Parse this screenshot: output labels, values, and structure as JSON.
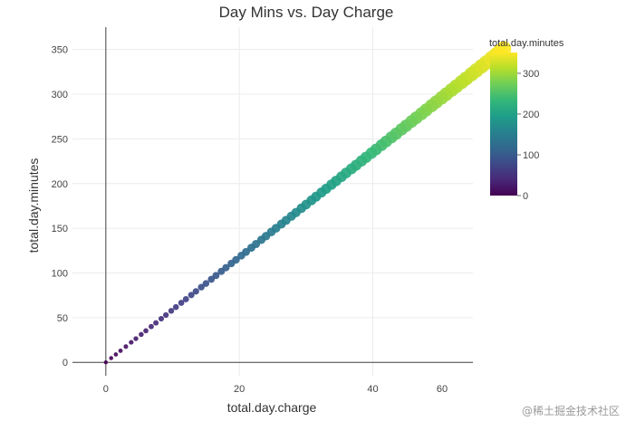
{
  "watermark": "@稀土掘金技术社区",
  "chart_data": {
    "type": "scatter",
    "title": "Day Mins vs. Day Charge",
    "xlabel": "total.day.charge",
    "ylabel": "total.day.minutes",
    "xlim": [
      -5,
      55
    ],
    "ylim": [
      -15,
      375
    ],
    "xticks": [
      0,
      20,
      40,
      60
    ],
    "yticks": [
      0,
      50,
      100,
      150,
      200,
      250,
      300,
      350
    ],
    "grid": true,
    "colorbar": {
      "title": "total.day.minutes",
      "range": [
        0,
        351
      ],
      "ticks": [
        0,
        100,
        200,
        300
      ],
      "colors": [
        "#440154",
        "#482878",
        "#3e4989",
        "#31688e",
        "#26828e",
        "#1f9e89",
        "#35b779",
        "#6ece58",
        "#b5de2b",
        "#fde725"
      ],
      "placement": "right"
    },
    "series": [
      {
        "rate_minutes_per_charge": 5.882,
        "x": [
          0,
          0.8,
          1.5,
          2.2,
          3.0,
          3.8,
          4.5,
          5.3,
          6.0,
          6.8,
          7.5,
          8.3,
          9.0,
          9.8,
          10.5,
          11.3,
          12.0,
          12.8,
          13.5,
          14.3,
          15.0,
          15.8,
          16.5,
          17.3,
          18.0,
          18.8,
          19.5,
          20.3,
          21.0,
          21.8,
          22.5,
          23.3,
          24.0,
          24.8,
          25.5,
          26.3,
          27.0,
          27.8,
          28.5,
          29.3,
          30.0,
          30.8,
          31.5,
          32.3,
          33.0,
          33.8,
          34.5,
          35.3,
          36.0,
          36.8,
          37.5,
          38.3,
          39.0,
          39.8,
          40.5,
          41.3,
          42.0,
          42.8,
          43.5,
          44.3,
          45.0,
          45.8,
          46.5,
          47.3,
          48.0,
          48.8,
          49.5,
          50.3,
          51.0,
          51.8,
          52.5,
          53.3,
          54.0,
          54.8,
          55.5,
          56.3,
          57.0,
          57.8,
          58.5,
          59.0,
          59.6
        ],
        "y": [
          0,
          4.7,
          8.8,
          12.9,
          17.6,
          22.4,
          26.5,
          31.2,
          35.3,
          40.0,
          44.1,
          48.8,
          52.9,
          57.6,
          61.8,
          66.5,
          70.6,
          75.3,
          79.4,
          84.1,
          88.2,
          92.9,
          97.1,
          101.8,
          105.9,
          110.6,
          114.7,
          119.4,
          123.5,
          128.2,
          132.4,
          137.1,
          141.2,
          145.9,
          150.0,
          154.7,
          158.8,
          163.5,
          167.6,
          172.4,
          176.5,
          181.2,
          185.3,
          190.0,
          194.1,
          198.8,
          202.9,
          207.6,
          211.8,
          216.5,
          220.6,
          225.3,
          229.4,
          234.1,
          238.2,
          242.9,
          247.1,
          251.8,
          255.9,
          260.6,
          264.7,
          269.4,
          273.5,
          278.2,
          282.4,
          287.1,
          291.2,
          295.9,
          300.0,
          304.7,
          308.8,
          313.5,
          317.6,
          322.4,
          326.5,
          331.2,
          335.3,
          340.0,
          344.1,
          347.1,
          350.8
        ]
      }
    ]
  }
}
